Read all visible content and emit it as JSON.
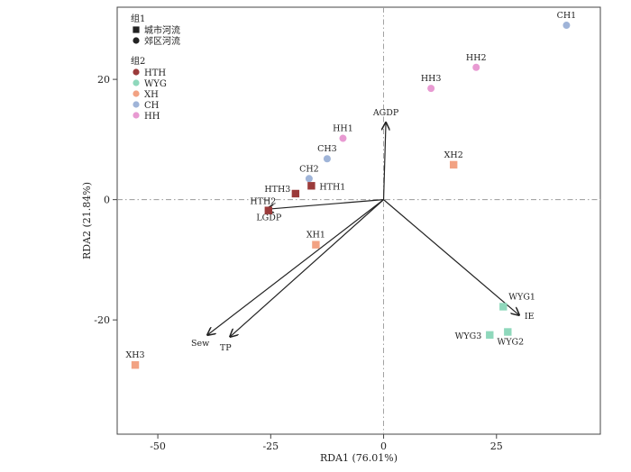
{
  "chart_data": {
    "type": "scatter",
    "subtype": "RDA biplot",
    "xlabel": "RDA1 (76.01%)",
    "ylabel": "RDA2 (21.84%)",
    "xlim": [
      -59,
      48
    ],
    "ylim": [
      -39,
      32
    ],
    "xticks": [
      -50,
      -25,
      0,
      25
    ],
    "yticks": [
      -20,
      0,
      20
    ],
    "reference_lines": {
      "x": 0,
      "y": 0
    },
    "legend": {
      "placement": "top-left",
      "groups": [
        {
          "title": "组1",
          "entries": [
            {
              "label": "城市河流",
              "shape": "square"
            },
            {
              "label": "郊区河流",
              "shape": "circle"
            }
          ]
        },
        {
          "title": "组2",
          "entries": [
            {
              "label": "HTH",
              "color": "#9b3b3b"
            },
            {
              "label": "WYG",
              "color": "#8fd8bc"
            },
            {
              "label": "XH",
              "color": "#f2a283"
            },
            {
              "label": "CH",
              "color": "#9fb4d8"
            },
            {
              "label": "HH",
              "color": "#e89ad2"
            }
          ]
        }
      ]
    },
    "points": [
      {
        "label": "CH1",
        "x": 40.5,
        "y": 29.0,
        "shape": "circle",
        "color": "#9fb4d8"
      },
      {
        "label": "HH2",
        "x": 20.5,
        "y": 22.0,
        "shape": "circle",
        "color": "#e89ad2"
      },
      {
        "label": "HH3",
        "x": 10.5,
        "y": 18.5,
        "shape": "circle",
        "color": "#e89ad2"
      },
      {
        "label": "HH1",
        "x": -9.0,
        "y": 10.2,
        "shape": "circle",
        "color": "#e89ad2"
      },
      {
        "label": "CH3",
        "x": -12.5,
        "y": 6.8,
        "shape": "circle",
        "color": "#9fb4d8"
      },
      {
        "label": "CH2",
        "x": -16.5,
        "y": 3.5,
        "shape": "circle",
        "color": "#9fb4d8"
      },
      {
        "label": "HTH1",
        "x": -16.0,
        "y": 2.3,
        "shape": "square",
        "color": "#9b3b3b"
      },
      {
        "label": "HTH3",
        "x": -19.5,
        "y": 1.0,
        "shape": "square",
        "color": "#9b3b3b"
      },
      {
        "label": "HTH2",
        "x": -25.5,
        "y": -1.8,
        "shape": "square",
        "color": "#9b3b3b"
      },
      {
        "label": "XH2",
        "x": 15.5,
        "y": 5.8,
        "shape": "square",
        "color": "#f2a283"
      },
      {
        "label": "XH1",
        "x": -15.0,
        "y": -7.5,
        "shape": "square",
        "color": "#f2a283"
      },
      {
        "label": "XH3",
        "x": -55.0,
        "y": -27.5,
        "shape": "square",
        "color": "#f2a283"
      },
      {
        "label": "WYG1",
        "x": 26.5,
        "y": -17.8,
        "shape": "square",
        "color": "#8fd8bc"
      },
      {
        "label": "WYG2",
        "x": 27.5,
        "y": -22.0,
        "shape": "square",
        "color": "#8fd8bc"
      },
      {
        "label": "WYG3",
        "x": 23.5,
        "y": -22.5,
        "shape": "square",
        "color": "#8fd8bc"
      }
    ],
    "vectors": [
      {
        "label": "AGDP",
        "x": 0.5,
        "y": 12.8
      },
      {
        "label": "LGDP",
        "x": -26.0,
        "y": -1.6
      },
      {
        "label": "Sew",
        "x": -39.0,
        "y": -22.5
      },
      {
        "label": "TP",
        "x": -34.0,
        "y": -22.8
      },
      {
        "label": "IE",
        "x": 30.0,
        "y": -19.2
      }
    ]
  }
}
